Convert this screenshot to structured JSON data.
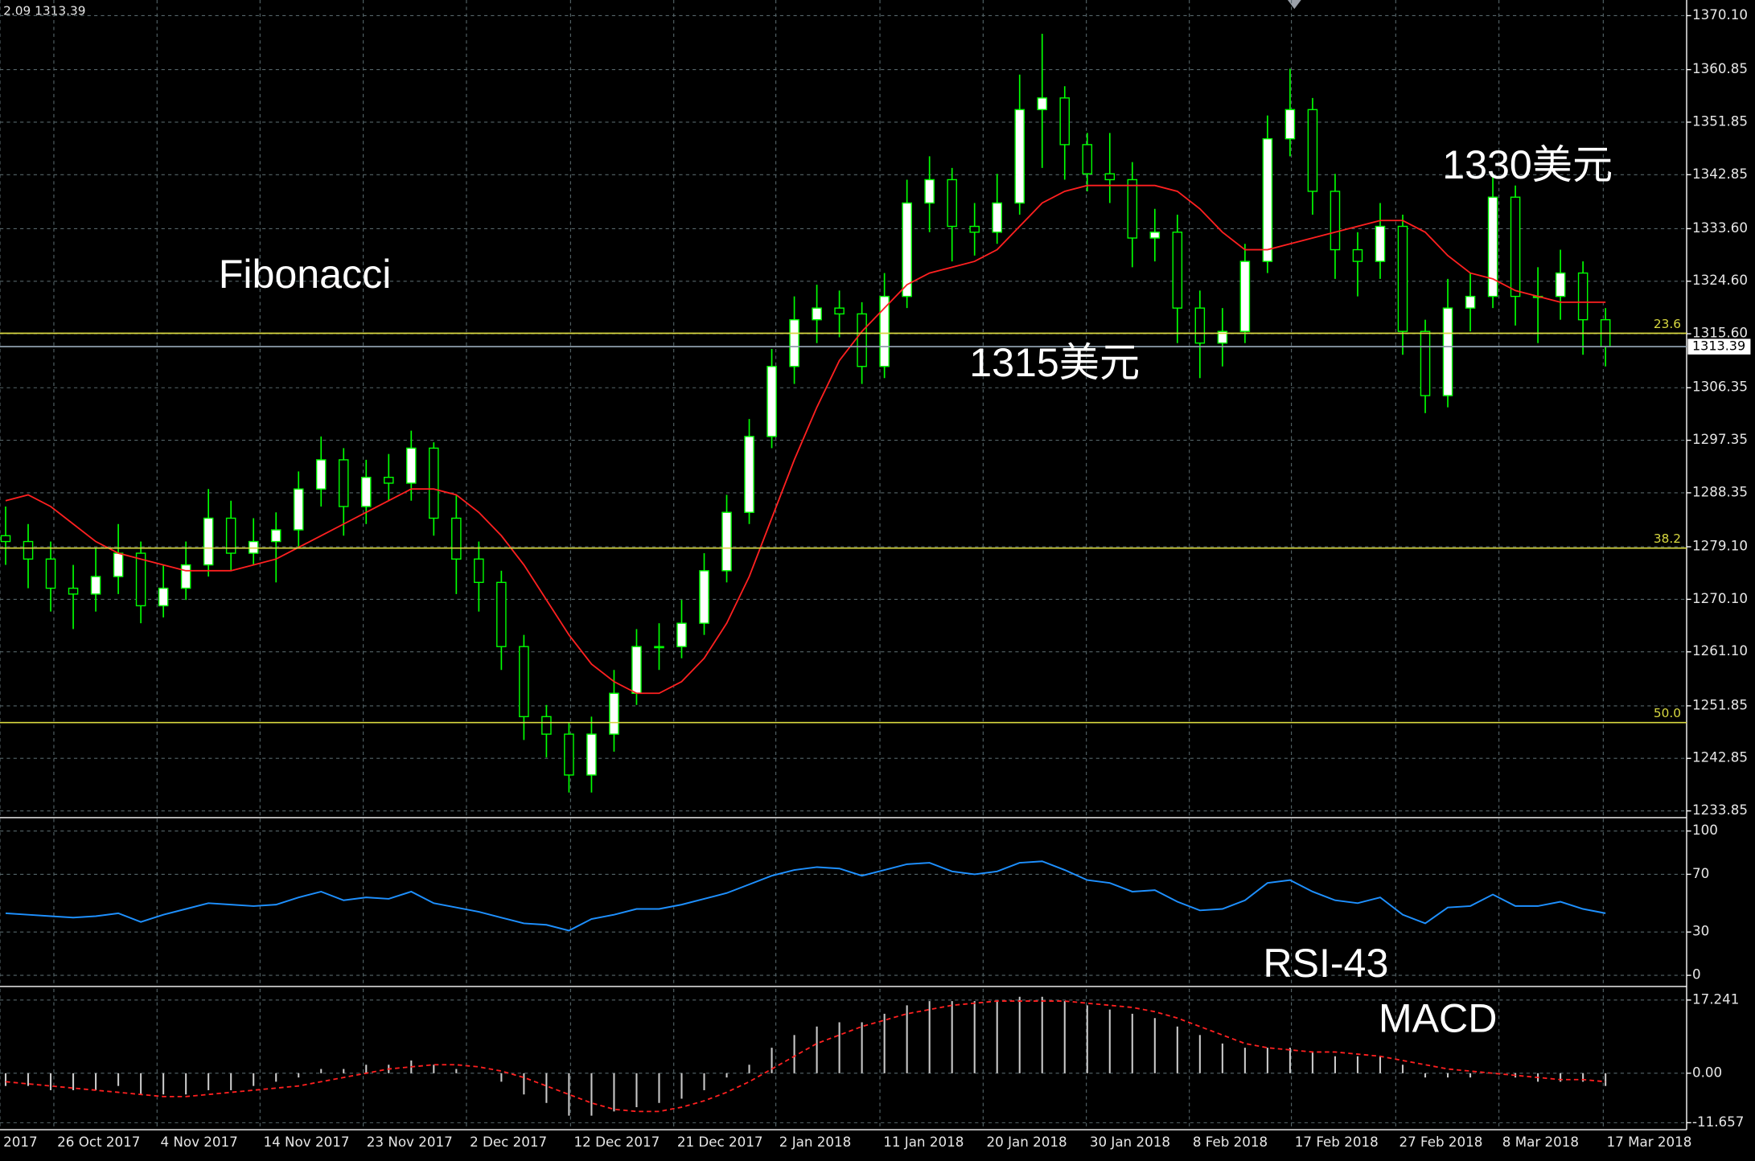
{
  "chart_data": [
    {
      "type": "candlestick",
      "info": "2.09 1313.39",
      "annotations": [
        "Fibonacci",
        "1315美元",
        "1330美元"
      ],
      "candle_color": "#00ff00",
      "open": [
        1281,
        1280,
        1277,
        1272,
        1271,
        1274,
        1278,
        1269,
        1272,
        1276,
        1284,
        1278,
        1280,
        1282,
        1289,
        1294,
        1286,
        1291,
        1290,
        1296,
        1284,
        1277,
        1273,
        1262,
        1250,
        1247,
        1240,
        1247,
        1254,
        1262,
        1262,
        1266,
        1275,
        1285,
        1298,
        1310,
        1318,
        1320,
        1319,
        1310,
        1322,
        1338,
        1342,
        1334,
        1333,
        1338,
        1354,
        1356,
        1348,
        1343,
        1342,
        1332,
        1333,
        1320,
        1314,
        1316,
        1328,
        1349,
        1354,
        1340,
        1330,
        1328,
        1334,
        1316,
        1305,
        1320,
        1322,
        1339,
        1322,
        1322,
        1326,
        1318
      ],
      "high": [
        1286,
        1283,
        1280,
        1276,
        1279,
        1283,
        1280,
        1276,
        1280,
        1289,
        1287,
        1284,
        1285,
        1292,
        1298,
        1296,
        1294,
        1295,
        1299,
        1297,
        1288,
        1280,
        1275,
        1264,
        1252,
        1249,
        1250,
        1258,
        1265,
        1266,
        1270,
        1278,
        1288,
        1301,
        1313,
        1322,
        1324,
        1323,
        1321,
        1326,
        1342,
        1346,
        1344,
        1338,
        1343,
        1360,
        1367,
        1358,
        1350,
        1350,
        1345,
        1337,
        1336,
        1323,
        1320,
        1331,
        1353,
        1361,
        1356,
        1343,
        1333,
        1338,
        1336,
        1318,
        1325,
        1326,
        1343,
        1341,
        1327,
        1330,
        1328,
        1320
      ],
      "low": [
        1276,
        1272,
        1268,
        1265,
        1268,
        1271,
        1266,
        1267,
        1270,
        1274,
        1275,
        1276,
        1273,
        1279,
        1286,
        1281,
        1283,
        1287,
        1287,
        1281,
        1271,
        1268,
        1258,
        1246,
        1243,
        1237,
        1237,
        1244,
        1252,
        1258,
        1260,
        1264,
        1273,
        1283,
        1296,
        1307,
        1314,
        1315,
        1307,
        1308,
        1320,
        1333,
        1328,
        1329,
        1331,
        1336,
        1344,
        1342,
        1340,
        1338,
        1327,
        1328,
        1314,
        1308,
        1310,
        1314,
        1326,
        1346,
        1336,
        1325,
        1322,
        1325,
        1312,
        1302,
        1303,
        1316,
        1320,
        1317,
        1314,
        1318,
        1312,
        1310
      ],
      "close": [
        1280,
        1277,
        1272,
        1271,
        1274,
        1278,
        1269,
        1272,
        1276,
        1284,
        1278,
        1280,
        1282,
        1289,
        1294,
        1286,
        1291,
        1290,
        1296,
        1284,
        1277,
        1273,
        1262,
        1250,
        1247,
        1240,
        1247,
        1254,
        1262,
        1262,
        1266,
        1275,
        1285,
        1298,
        1310,
        1318,
        1320,
        1319,
        1310,
        1322,
        1338,
        1342,
        1334,
        1333,
        1338,
        1354,
        1356,
        1348,
        1343,
        1342,
        1332,
        1333,
        1320,
        1314,
        1316,
        1328,
        1349,
        1354,
        1340,
        1330,
        1328,
        1334,
        1316,
        1305,
        1320,
        1322,
        1339,
        1322,
        1322,
        1326,
        1318,
        1313.39
      ],
      "ma": {
        "color": "#ff2020",
        "values": [
          1287,
          1288,
          1286,
          1283,
          1280,
          1278,
          1277,
          1276,
          1275,
          1275,
          1275,
          1276,
          1277,
          1279,
          1281,
          1283,
          1285,
          1287,
          1289,
          1289,
          1288,
          1285,
          1281,
          1276,
          1270,
          1264,
          1259,
          1256,
          1254,
          1254,
          1256,
          1260,
          1266,
          1274,
          1284,
          1294,
          1303,
          1311,
          1316,
          1320,
          1324,
          1326,
          1327,
          1328,
          1330,
          1334,
          1338,
          1340,
          1341,
          1341,
          1341,
          1341,
          1340,
          1337,
          1333,
          1330,
          1330,
          1331,
          1332,
          1333,
          1334,
          1335,
          1335,
          1333,
          1329,
          1326,
          1325,
          1323,
          1322,
          1321,
          1321,
          1321
        ]
      },
      "fib_color": "#d8d840",
      "fib_levels": [
        {
          "value": 1315.68,
          "label": "23.6"
        },
        {
          "value": 1278.88,
          "label": "38.2"
        },
        {
          "value": 1248.99,
          "label": "50.0"
        }
      ],
      "current_price": 1313.39,
      "grid": true,
      "xlim": [
        -0.25,
        74.6
      ],
      "xticks": [
        {
          "value": -0.25,
          "label": "2017"
        },
        {
          "value": 2.14,
          "label": "26 Oct 2017"
        },
        {
          "value": 6.72,
          "label": "4 Nov 2017"
        },
        {
          "value": 11.29,
          "label": "14 Nov 2017"
        },
        {
          "value": 15.87,
          "label": "23 Nov 2017"
        },
        {
          "value": 20.45,
          "label": "2 Dec 2017"
        },
        {
          "value": 25.07,
          "label": "12 Dec 2017"
        },
        {
          "value": 29.65,
          "label": "21 Dec 2017"
        },
        {
          "value": 34.18,
          "label": "2 Jan 2018"
        },
        {
          "value": 38.8,
          "label": "11 Jan 2018"
        },
        {
          "value": 43.38,
          "label": "20 Jan 2018"
        },
        {
          "value": 47.96,
          "label": "30 Jan 2018"
        },
        {
          "value": 52.53,
          "label": "8 Feb 2018"
        },
        {
          "value": 57.06,
          "label": "17 Feb 2018"
        },
        {
          "value": 61.69,
          "label": "27 Feb 2018"
        },
        {
          "value": 66.27,
          "label": "8 Mar 2018"
        },
        {
          "value": 70.9,
          "label": "17 Mar 2018"
        }
      ],
      "ylim": [
        1232.89,
        1372.78
      ],
      "yticks": [
        1233.85,
        1242.85,
        1251.85,
        {
          "value": 1261.1,
          "label": "1261.10"
        },
        {
          "value": 1270.1,
          "label": "1270.10"
        },
        {
          "value": 1279.1,
          "label": "1279.10"
        },
        1288.35,
        1297.35,
        1306.35,
        {
          "value": 1315.6,
          "label": "1315.60"
        },
        {
          "value": 1324.6,
          "label": "1324.60"
        },
        {
          "value": 1333.6,
          "label": "1333.60"
        },
        1342.85,
        1351.85,
        1360.85,
        {
          "value": 1370.1,
          "label": "1370.10"
        }
      ]
    },
    {
      "type": "line",
      "title": "RSI-43",
      "color": "#1e90ff",
      "values": [
        43,
        42,
        41,
        40,
        41,
        43,
        37,
        42,
        46,
        50,
        49,
        48,
        49,
        54,
        58,
        52,
        54,
        53,
        58,
        50,
        47,
        44,
        40,
        36,
        35,
        31,
        39,
        42,
        46,
        46,
        49,
        53,
        57,
        63,
        69,
        73,
        75,
        74,
        69,
        73,
        77,
        78,
        72,
        70,
        72,
        78,
        79,
        73,
        66,
        64,
        58,
        59,
        51,
        45,
        46,
        52,
        64,
        66,
        58,
        52,
        50,
        54,
        42,
        36,
        47,
        48,
        56,
        48,
        48,
        51,
        46,
        43
      ],
      "grid": true,
      "ylim": [
        -6.2,
        108.5
      ],
      "yticks": [
        0,
        30,
        70,
        100
      ]
    },
    {
      "type": "macd",
      "title": "MACD",
      "histogram": {
        "color": "#c8c8c8",
        "values": [
          -3,
          -3,
          -4,
          -4,
          -4,
          -3,
          -5,
          -5,
          -5,
          -4,
          -4,
          -3,
          -2,
          -1,
          1,
          1,
          2,
          2,
          3,
          2,
          1,
          0,
          -2,
          -5,
          -7,
          -10,
          -10,
          -9,
          -8,
          -7,
          -6,
          -4,
          -1,
          2,
          6,
          9,
          11,
          12,
          12,
          14,
          16,
          17,
          17,
          17,
          17,
          18,
          18,
          17,
          16,
          15,
          14,
          13,
          11,
          9,
          7,
          6,
          6,
          6,
          5,
          4,
          4,
          4,
          2,
          -1,
          -1,
          -1,
          0,
          -1,
          -2,
          -2,
          -2,
          -3
        ]
      },
      "signal": {
        "color": "#ff2020",
        "values": [
          -2,
          -2.5,
          -3,
          -3.5,
          -4,
          -4.5,
          -5,
          -5.5,
          -5.5,
          -5,
          -4.5,
          -4,
          -3.5,
          -3,
          -2,
          -1,
          0,
          1,
          1.5,
          2,
          2,
          1.5,
          0.5,
          -1,
          -3,
          -5,
          -7,
          -8.5,
          -9,
          -9,
          -8,
          -6.5,
          -4.5,
          -2,
          1,
          4,
          7,
          9,
          11,
          12.5,
          14,
          15,
          16,
          16.5,
          17,
          17,
          17,
          17,
          16.5,
          16,
          15.5,
          14.5,
          13,
          11,
          9,
          7,
          6,
          5.5,
          5,
          5,
          4.5,
          4,
          3,
          2,
          1,
          0.5,
          0,
          -0.5,
          -1,
          -1.5,
          -1.5,
          -2
        ]
      },
      "grid": true,
      "ylim": [
        -13.3,
        19.9
      ],
      "yticks": [
        -11.657,
        {
          "value": 0,
          "label": "0.00"
        },
        17.241
      ]
    }
  ]
}
